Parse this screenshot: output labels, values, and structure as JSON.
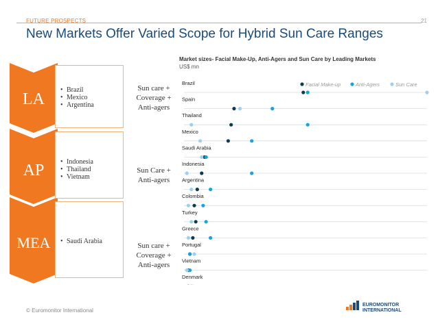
{
  "header": {
    "section": "FUTURE PROSPECTS",
    "page_number": "21"
  },
  "title": "New Markets Offer Varied Scope for Hybrid Sun Care Ranges",
  "regions": [
    {
      "code": "LA",
      "countries": [
        "Brazil",
        "Mexico",
        "Argentina"
      ],
      "description": [
        "Sun care +",
        "Coverage +",
        "Anti-agers"
      ]
    },
    {
      "code": "AP",
      "countries": [
        "Indonesia",
        "Thailand",
        "Vietnam"
      ],
      "description": [
        "Sun Care +",
        "Anti-agers"
      ]
    },
    {
      "code": "MEA",
      "countries": [
        "Saudi Arabia"
      ],
      "description": [
        "Sun care +",
        "Coverage +",
        "Anti-agers"
      ]
    }
  ],
  "footer": "© Euromonitor International",
  "logo": {
    "line1": "EUROMONITOR",
    "line2": "INTERNATIONAL"
  },
  "colors": {
    "accent": "#f07820",
    "facial": "#0d3b4f",
    "antiagers": "#1aa3d8",
    "suncare": "#9fd0ea",
    "title": "#1a4a7a"
  },
  "chart_data": {
    "type": "scatter",
    "title": "Market sizes- Facial Make-Up, Anti-Agers and Sun Care by Leading Markets",
    "unit": "US$ mn",
    "xlim": [
      0,
      1650
    ],
    "x_ticks": [
      "0%",
      "825",
      "1,650"
    ],
    "x_tick_values": [
      0,
      825,
      1650
    ],
    "legend_position": "top-right",
    "categories": [
      "Brazil",
      "Spain",
      "Thailand",
      "Mexico",
      "Saudi Arabia",
      "Indonesia",
      "Argentina",
      "Colombia",
      "Turkey",
      "Greece",
      "Portugal",
      "Vietnam",
      "Denmark"
    ],
    "series": [
      {
        "name": "Facial Make-up",
        "values": [
          810,
          340,
          320,
          300,
          140,
          120,
          90,
          70,
          80,
          60,
          40,
          30,
          30
        ]
      },
      {
        "name": "Anti-Agers",
        "values": [
          840,
          600,
          840,
          460,
          150,
          460,
          180,
          130,
          150,
          180,
          40,
          40,
          50
        ]
      },
      {
        "name": "Sun Care",
        "values": [
          1650,
          380,
          50,
          110,
          120,
          20,
          50,
          30,
          50,
          30,
          70,
          20,
          60
        ]
      }
    ]
  }
}
